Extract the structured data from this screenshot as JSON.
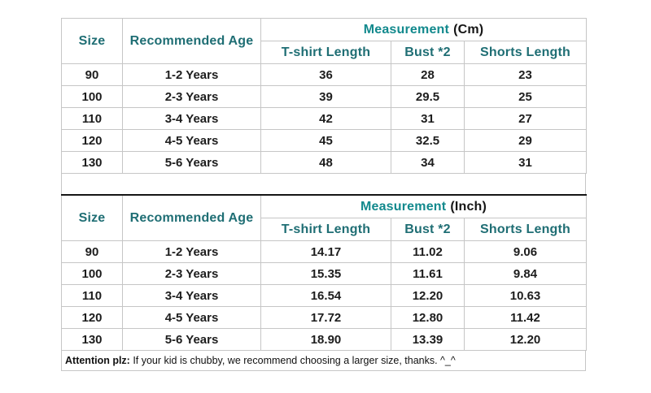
{
  "colors": {
    "header_teal": "#1f6e74",
    "measurement_teal": "#12898d",
    "body_text": "#1d1d1d",
    "border_light": "#c6c6c6",
    "border_dark": "#151515",
    "background": "#ffffff"
  },
  "tables": [
    {
      "measurement_label": "Measurement",
      "unit_label": "(Cm)",
      "col_headers": {
        "size": "Size",
        "age": "Recommended Age",
        "tshirt": "T-shirt Length",
        "bust": "Bust *2",
        "shorts": "Shorts Length"
      },
      "rows": [
        {
          "size": "90",
          "age": "1-2 Years",
          "tshirt": "36",
          "bust": "28",
          "shorts": "23"
        },
        {
          "size": "100",
          "age": "2-3 Years",
          "tshirt": "39",
          "bust": "29.5",
          "shorts": "25"
        },
        {
          "size": "110",
          "age": "3-4 Years",
          "tshirt": "42",
          "bust": "31",
          "shorts": "27"
        },
        {
          "size": "120",
          "age": "4-5 Years",
          "tshirt": "45",
          "bust": "32.5",
          "shorts": "29"
        },
        {
          "size": "130",
          "age": "5-6 Years",
          "tshirt": "48",
          "bust": "34",
          "shorts": "31"
        }
      ]
    },
    {
      "measurement_label": "Measurement",
      "unit_label": "(Inch)",
      "col_headers": {
        "size": "Size",
        "age": "Recommended Age",
        "tshirt": "T-shirt Length",
        "bust": "Bust *2",
        "shorts": "Shorts Length"
      },
      "rows": [
        {
          "size": "90",
          "age": "1-2 Years",
          "tshirt": "14.17",
          "bust": "11.02",
          "shorts": "9.06"
        },
        {
          "size": "100",
          "age": "2-3 Years",
          "tshirt": "15.35",
          "bust": "11.61",
          "shorts": "9.84"
        },
        {
          "size": "110",
          "age": "3-4 Years",
          "tshirt": "16.54",
          "bust": "12.20",
          "shorts": "10.63"
        },
        {
          "size": "120",
          "age": "4-5 Years",
          "tshirt": "17.72",
          "bust": "12.80",
          "shorts": "11.42"
        },
        {
          "size": "130",
          "age": "5-6 Years",
          "tshirt": "18.90",
          "bust": "13.39",
          "shorts": "12.20"
        }
      ]
    }
  ],
  "footer": {
    "attention_bold": "Attention plz:",
    "attention_text": " If your kid is chubby, we recommend choosing a larger size, thanks. ^_^"
  },
  "chart_data": [
    {
      "type": "table",
      "title": "Measurement (Cm)",
      "columns": [
        "Size",
        "Recommended Age",
        "T-shirt Length",
        "Bust *2",
        "Shorts Length"
      ],
      "rows": [
        [
          "90",
          "1-2 Years",
          36,
          28,
          23
        ],
        [
          "100",
          "2-3 Years",
          39,
          29.5,
          25
        ],
        [
          "110",
          "3-4 Years",
          42,
          31,
          27
        ],
        [
          "120",
          "4-5 Years",
          45,
          32.5,
          29
        ],
        [
          "130",
          "5-6 Years",
          48,
          34,
          31
        ]
      ]
    },
    {
      "type": "table",
      "title": "Measurement (Inch)",
      "columns": [
        "Size",
        "Recommended Age",
        "T-shirt Length",
        "Bust *2",
        "Shorts Length"
      ],
      "rows": [
        [
          "90",
          "1-2 Years",
          14.17,
          11.02,
          9.06
        ],
        [
          "100",
          "2-3 Years",
          15.35,
          11.61,
          9.84
        ],
        [
          "110",
          "3-4 Years",
          16.54,
          12.2,
          10.63
        ],
        [
          "120",
          "4-5 Years",
          17.72,
          12.8,
          11.42
        ],
        [
          "130",
          "5-6 Years",
          18.9,
          13.39,
          12.2
        ]
      ]
    }
  ]
}
